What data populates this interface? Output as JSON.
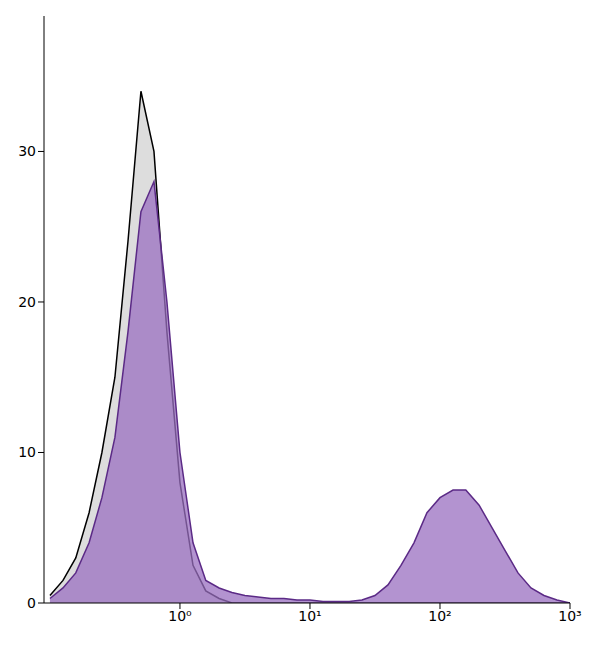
{
  "chart_data": {
    "type": "area",
    "log": "x",
    "grid": false,
    "xlim": [
      0.09,
      1000
    ],
    "xticks": [
      {
        "value": 1,
        "label": "10⁰"
      },
      {
        "value": 10,
        "label": "10¹"
      },
      {
        "value": 100,
        "label": "10²"
      },
      {
        "value": 1000,
        "label": "10³"
      }
    ],
    "ylim": [
      0,
      39
    ],
    "yticks": [
      0,
      10,
      20,
      30
    ],
    "x": [
      0.1,
      0.126,
      0.158,
      0.2,
      0.251,
      0.316,
      0.398,
      0.501,
      0.631,
      0.794,
      1,
      1.26,
      1.58,
      2,
      2.51,
      3.16,
      3.98,
      5.01,
      6.31,
      7.94,
      10,
      12.6,
      15.8,
      20,
      25.1,
      31.6,
      39.8,
      50.1,
      63.1,
      79.4,
      100,
      126,
      158,
      200,
      251,
      316,
      398,
      501,
      631,
      794,
      1000
    ],
    "series": [
      {
        "color": "#000000",
        "values": [
          0.5,
          1.5,
          3,
          6,
          10,
          15,
          24,
          34,
          30,
          18,
          8,
          2.5,
          0.8,
          0.3,
          0,
          0,
          0,
          0,
          0,
          0,
          0,
          0,
          0,
          0,
          0,
          0,
          0,
          0,
          0,
          0,
          0,
          0,
          0,
          0,
          0,
          0,
          0,
          0,
          0,
          0,
          0
        ]
      },
      {
        "color": "#5b2a86",
        "values": [
          0.3,
          1,
          2,
          4,
          7,
          11,
          18,
          26,
          28,
          20,
          10,
          4,
          1.5,
          1,
          0.7,
          0.5,
          0.4,
          0.3,
          0.3,
          0.2,
          0.2,
          0.1,
          0.1,
          0.1,
          0.2,
          0.5,
          1.2,
          2.5,
          4,
          6,
          7,
          7.5,
          7.5,
          6.5,
          5,
          3.5,
          2,
          1,
          0.5,
          0.2,
          0
        ]
      }
    ]
  }
}
